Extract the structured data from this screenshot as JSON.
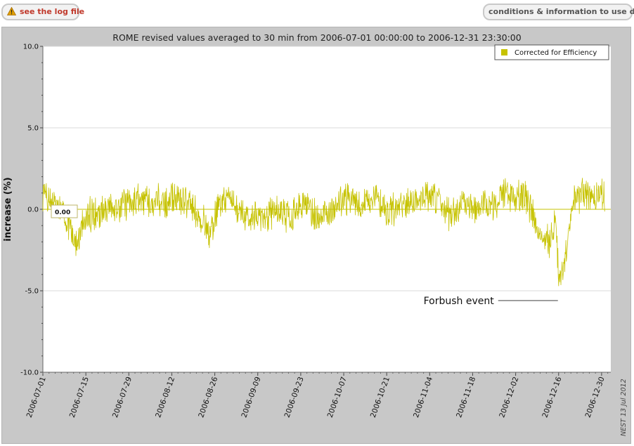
{
  "toolbar": {
    "log_label": "see the log file",
    "conditions_label": "conditions & information to use data",
    "warning_color": "#e2a000"
  },
  "chart_data": {
    "type": "line",
    "title": "ROME revised values averaged to 30 min from 2006-07-01 00:00:00 to 2006-12-31 23:30:00",
    "xlabel": "",
    "ylabel": "increase (%)",
    "ylim": [
      -10,
      10
    ],
    "xlim": [
      "2006-07-01",
      "2007-01-02"
    ],
    "yticks": [
      "10.0",
      "5.0",
      "0.0",
      "-5.0",
      "-10.0"
    ],
    "xticks": [
      "2006-07-01",
      "2006-07-15",
      "2006-07-29",
      "2006-08-12",
      "2006-08-26",
      "2006-09-09",
      "2006-09-23",
      "2006-10-07",
      "2006-10-21",
      "2006-11-04",
      "2006-11-18",
      "2006-12-02",
      "2006-12-16",
      "2006-12-30"
    ],
    "grid": true,
    "legend_position": "top-right",
    "series": [
      {
        "name": "Corrected for Efficiency",
        "color": "#c6c200",
        "x": [
          "2006-07-01",
          "2006-07-03",
          "2006-07-05",
          "2006-07-07",
          "2006-07-09",
          "2006-07-11",
          "2006-07-12",
          "2006-07-13",
          "2006-07-14",
          "2006-07-15",
          "2006-07-17",
          "2006-07-19",
          "2006-07-21",
          "2006-07-23",
          "2006-07-25",
          "2006-07-27",
          "2006-07-29",
          "2006-08-01",
          "2006-08-04",
          "2006-08-07",
          "2006-08-10",
          "2006-08-13",
          "2006-08-16",
          "2006-08-19",
          "2006-08-21",
          "2006-08-23",
          "2006-08-24",
          "2006-08-25",
          "2006-08-26",
          "2006-08-28",
          "2006-08-30",
          "2006-09-01",
          "2006-09-03",
          "2006-09-05",
          "2006-09-07",
          "2006-09-09",
          "2006-09-11",
          "2006-09-13",
          "2006-09-15",
          "2006-09-17",
          "2006-09-19",
          "2006-09-21",
          "2006-09-23",
          "2006-09-25",
          "2006-09-27",
          "2006-09-29",
          "2006-10-01",
          "2006-10-03",
          "2006-10-05",
          "2006-10-07",
          "2006-10-09",
          "2006-10-11",
          "2006-10-13",
          "2006-10-15",
          "2006-10-17",
          "2006-10-19",
          "2006-10-21",
          "2006-10-23",
          "2006-10-25",
          "2006-10-27",
          "2006-10-29",
          "2006-10-31",
          "2006-11-02",
          "2006-11-04",
          "2006-11-06",
          "2006-11-08",
          "2006-11-10",
          "2006-11-12",
          "2006-11-14",
          "2006-11-16",
          "2006-11-18",
          "2006-11-20",
          "2006-11-22",
          "2006-11-24",
          "2006-11-26",
          "2006-11-28",
          "2006-11-30",
          "2006-12-02",
          "2006-12-04",
          "2006-12-06",
          "2006-12-08",
          "2006-12-09",
          "2006-12-10",
          "2006-12-11",
          "2006-12-12",
          "2006-12-13",
          "2006-12-14",
          "2006-12-15",
          "2006-12-16",
          "2006-12-17",
          "2006-12-18",
          "2006-12-19",
          "2006-12-20",
          "2006-12-21",
          "2006-12-22",
          "2006-12-23",
          "2006-12-24",
          "2006-12-26",
          "2006-12-28",
          "2006-12-30",
          "2006-12-31"
        ],
        "y": [
          0.6,
          0.5,
          0.3,
          -0.2,
          -0.6,
          -1.5,
          -2.3,
          -1.7,
          -0.9,
          -0.6,
          -0.2,
          -0.3,
          0.0,
          0.1,
          0.2,
          0.3,
          0.4,
          0.5,
          0.5,
          0.5,
          0.4,
          0.6,
          0.5,
          0.2,
          -0.6,
          -0.9,
          -1.8,
          -1.4,
          -0.3,
          0.3,
          0.6,
          0.3,
          -0.2,
          -0.4,
          -0.6,
          -0.5,
          -0.4,
          -0.3,
          -0.1,
          -0.3,
          -0.6,
          -0.4,
          0.2,
          0.3,
          -0.3,
          -0.5,
          -0.2,
          0.0,
          0.3,
          0.6,
          0.6,
          0.4,
          0.2,
          0.5,
          0.8,
          0.4,
          -0.2,
          0.0,
          0.3,
          0.1,
          0.3,
          0.5,
          0.6,
          0.9,
          0.8,
          0.3,
          -0.3,
          -0.1,
          0.2,
          0.4,
          -0.1,
          0.0,
          0.4,
          0.2,
          0.6,
          0.9,
          0.9,
          0.8,
          0.9,
          0.5,
          -0.6,
          -1.5,
          -1.9,
          -2.1,
          -1.7,
          -2.4,
          -1.4,
          -0.5,
          -4.2,
          -3.9,
          -3.0,
          -1.9,
          -0.6,
          0.4,
          0.7,
          0.9,
          0.9,
          0.8,
          0.9,
          1.0,
          0.9
        ]
      }
    ],
    "annotations": [
      {
        "text": "Forbush event",
        "x": "2006-12-16",
        "y": -5.6
      }
    ],
    "marker_label": "0.00",
    "credit": "NEST 13 Jul 2012"
  }
}
